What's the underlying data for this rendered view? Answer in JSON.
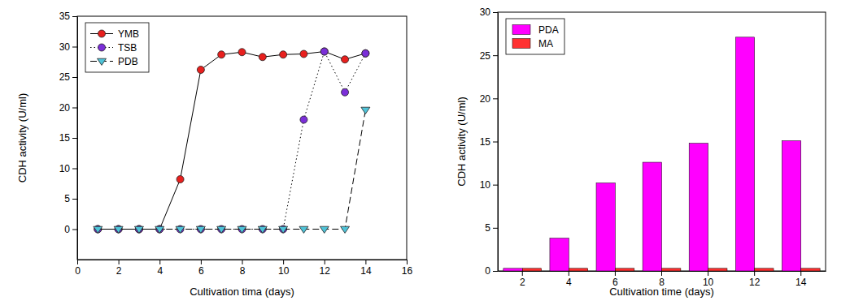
{
  "chart_data": [
    {
      "type": "line",
      "x_label": "Cultivation tima (days)",
      "y_label": "CDH activity (U/ml)",
      "x": [
        1,
        2,
        3,
        4,
        5,
        6,
        7,
        8,
        9,
        10,
        11,
        12,
        13,
        14
      ],
      "series": [
        {
          "name": "YMB",
          "color": "#e8201e",
          "marker": "circle",
          "line_style": "solid",
          "values": [
            0,
            0,
            0,
            0,
            8.2,
            26.2,
            28.7,
            29.1,
            28.3,
            28.7,
            28.8,
            29.2,
            27.9,
            28.9
          ]
        },
        {
          "name": "TSB",
          "color": "#7b2fd8",
          "marker": "circle",
          "line_style": "dotted",
          "values": [
            0,
            0,
            0,
            0,
            0,
            0,
            0,
            0,
            0,
            0,
            18,
            29.2,
            22.5,
            28.9
          ]
        },
        {
          "name": "PDB",
          "color": "#4fc3d8",
          "marker": "triangle-down",
          "line_style": "dashed",
          "values": [
            0,
            0,
            0,
            0,
            0,
            0,
            0,
            0,
            0,
            0,
            0,
            0,
            0,
            19.6
          ]
        }
      ],
      "xlim": [
        0,
        16
      ],
      "xticks": [
        0,
        2,
        4,
        6,
        8,
        10,
        12,
        14,
        16
      ],
      "ylim": [
        -5,
        35
      ],
      "yticks": [
        0,
        5,
        10,
        15,
        20,
        25,
        30,
        35
      ],
      "grid": false,
      "legend": "upper left"
    },
    {
      "type": "bar",
      "x_label": "Cultivation time (days)",
      "y_label": "CDH activity (U/ml)",
      "categories": [
        "2",
        "4",
        "6",
        "8",
        "10",
        "12",
        "14"
      ],
      "series": [
        {
          "name": "PDA",
          "color": "#ff00ff",
          "values": [
            0.3,
            3.8,
            10.2,
            12.6,
            14.8,
            27.1,
            15.1
          ]
        },
        {
          "name": "MA",
          "color": "#ff3030",
          "values": [
            0.3,
            0.3,
            0.3,
            0.3,
            0.3,
            0.3,
            0.3
          ]
        }
      ],
      "ylim": [
        0,
        30
      ],
      "yticks": [
        0,
        5,
        10,
        15,
        20,
        25,
        30
      ],
      "grid": false,
      "legend": "upper left"
    }
  ]
}
